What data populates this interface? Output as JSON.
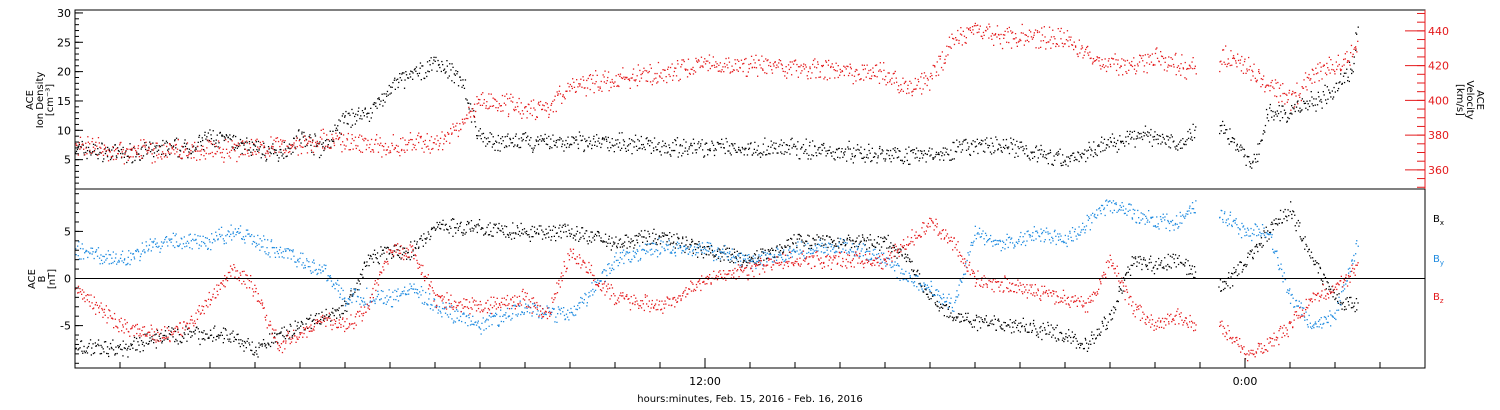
{
  "colors": {
    "black": "#000000",
    "red": "#e41a1c",
    "blue": "#1f8be0"
  },
  "chart_data": [
    {
      "type": "scatter",
      "panel": "ion-density-velocity",
      "ylabel_lines": [
        "ACE",
        "Ion Density",
        "[cm⁻³]"
      ],
      "ylabel_right_lines": [
        "ACE",
        "Velocity",
        "[km/s]"
      ],
      "ylim": [
        0,
        30.5
      ],
      "ylim_right": [
        349,
        452
      ],
      "yticks_left": [
        5,
        10,
        15,
        20,
        25,
        30
      ],
      "yticks_right": [
        360,
        380,
        400,
        420,
        440
      ],
      "x_hours_range": [
        -2.0,
        28.0
      ],
      "series": [
        {
          "axis": "left",
          "color": "black",
          "points": [
            [
              -2.0,
              7
            ],
            [
              -1.0,
              6
            ],
            [
              0.0,
              7
            ],
            [
              0.6,
              7
            ],
            [
              1.0,
              9
            ],
            [
              1.5,
              8
            ],
            [
              2.0,
              7
            ],
            [
              2.5,
              6
            ],
            [
              3.0,
              9
            ],
            [
              3.5,
              7
            ],
            [
              4.0,
              12
            ],
            [
              4.5,
              13
            ],
            [
              5.0,
              17
            ],
            [
              5.3,
              19
            ],
            [
              5.7,
              20
            ],
            [
              6.0,
              22
            ],
            [
              6.3,
              20
            ],
            [
              6.6,
              19
            ],
            [
              6.9,
              10
            ],
            [
              7.2,
              8
            ],
            [
              8.0,
              8
            ],
            [
              9.0,
              8
            ],
            [
              10.0,
              8
            ],
            [
              11.0,
              7.5
            ],
            [
              12.0,
              7
            ],
            [
              13.0,
              7
            ],
            [
              14.0,
              7
            ],
            [
              15.0,
              6.5
            ],
            [
              16.0,
              6
            ],
            [
              17.0,
              6
            ],
            [
              18.0,
              7.5
            ],
            [
              19.0,
              7
            ],
            [
              20.0,
              5
            ],
            [
              21.0,
              8
            ],
            [
              21.5,
              9
            ],
            [
              22.0,
              9
            ],
            [
              22.5,
              8
            ],
            [
              23.3,
              12
            ],
            [
              24.2,
              4
            ],
            [
              24.5,
              13
            ],
            [
              25.0,
              13
            ],
            [
              25.5,
              15
            ],
            [
              26.0,
              17
            ],
            [
              26.4,
              21
            ],
            [
              26.5,
              29
            ]
          ]
        },
        {
          "axis": "right",
          "color": "red",
          "points": [
            [
              -2.0,
              375
            ],
            [
              -1.0,
              371
            ],
            [
              0.0,
              372
            ],
            [
              0.6,
              371
            ],
            [
              1.0,
              372
            ],
            [
              1.5,
              371
            ],
            [
              2.0,
              372
            ],
            [
              2.5,
              374
            ],
            [
              3.0,
              375
            ],
            [
              3.5,
              378
            ],
            [
              4.0,
              376
            ],
            [
              4.5,
              375
            ],
            [
              5.0,
              374
            ],
            [
              5.5,
              376
            ],
            [
              6.0,
              375
            ],
            [
              6.5,
              385
            ],
            [
              7.0,
              400
            ],
            [
              7.5,
              399
            ],
            [
              8.0,
              396
            ],
            [
              8.5,
              396
            ],
            [
              9.0,
              408
            ],
            [
              10.0,
              413
            ],
            [
              11.0,
              415
            ],
            [
              12.0,
              421
            ],
            [
              13.0,
              421
            ],
            [
              14.0,
              419
            ],
            [
              15.0,
              416
            ],
            [
              16.0,
              416
            ],
            [
              16.5,
              407
            ],
            [
              17.0,
              412
            ],
            [
              17.5,
              435
            ],
            [
              18.0,
              442
            ],
            [
              18.5,
              437
            ],
            [
              19.0,
              437
            ],
            [
              20.0,
              437
            ],
            [
              20.5,
              425
            ],
            [
              21.0,
              421
            ],
            [
              21.5,
              420
            ],
            [
              22.0,
              424
            ],
            [
              23.0,
              417
            ],
            [
              23.5,
              425
            ],
            [
              24.0,
              420
            ],
            [
              24.5,
              410
            ],
            [
              25.0,
              400
            ],
            [
              25.5,
              415
            ],
            [
              26.0,
              420
            ],
            [
              26.5,
              430
            ]
          ]
        }
      ]
    },
    {
      "type": "scatter",
      "panel": "magnetic-field",
      "ylabel_lines": [
        "ACE",
        "B",
        "[nT]"
      ],
      "ylim": [
        -9.5,
        9.5
      ],
      "yticks": [
        -5,
        0,
        5
      ],
      "x_hours_range": [
        -2.0,
        28.0
      ],
      "xticks_hours": [
        -1,
        0,
        1,
        2,
        3,
        4,
        5,
        6,
        7,
        8,
        9,
        10,
        11,
        12,
        13,
        14,
        15,
        16,
        17,
        18,
        19,
        20,
        21,
        22,
        23,
        24,
        25,
        26,
        27,
        28,
        29
      ],
      "xtick_labels": [
        {
          "hour": 12,
          "label": "12:00"
        },
        {
          "hour": 24,
          "label": "0:00"
        }
      ],
      "xlabel": "hours:minutes, Feb. 15, 2016 - Feb. 16, 2016",
      "legend": [
        {
          "text": "B",
          "sub": "x",
          "color": "black"
        },
        {
          "text": "B",
          "sub": "y",
          "color": "blue"
        },
        {
          "text": "B",
          "sub": "z",
          "color": "red"
        }
      ],
      "series": [
        {
          "name": "Bx",
          "color": "black",
          "points": [
            [
              -2.0,
              -7
            ],
            [
              -1.0,
              -7.5
            ],
            [
              0.0,
              -6
            ],
            [
              1.0,
              -6
            ],
            [
              1.5,
              -6
            ],
            [
              2.0,
              -7.5
            ],
            [
              2.5,
              -6
            ],
            [
              3.0,
              -5
            ],
            [
              3.5,
              -4
            ],
            [
              4.0,
              -3
            ],
            [
              4.5,
              2
            ],
            [
              5.0,
              3
            ],
            [
              5.5,
              3
            ],
            [
              6.0,
              5.5
            ],
            [
              7.0,
              5.5
            ],
            [
              8.0,
              5
            ],
            [
              9.0,
              5
            ],
            [
              10.0,
              4
            ],
            [
              11.0,
              4.5
            ],
            [
              12.0,
              3
            ],
            [
              13.0,
              2
            ],
            [
              14.0,
              4
            ],
            [
              15.0,
              4
            ],
            [
              16.0,
              4
            ],
            [
              16.5,
              2
            ],
            [
              17.0,
              -2
            ],
            [
              17.5,
              -4
            ],
            [
              18.0,
              -4.5
            ],
            [
              19.0,
              -5
            ],
            [
              20.0,
              -6
            ],
            [
              20.5,
              -7
            ],
            [
              21.0,
              -4
            ],
            [
              21.5,
              2
            ],
            [
              22.0,
              1.5
            ],
            [
              22.5,
              2
            ],
            [
              23.0,
              0
            ],
            [
              23.5,
              -1
            ],
            [
              24.0,
              2
            ],
            [
              24.5,
              5
            ],
            [
              25.0,
              7.5
            ],
            [
              25.5,
              2
            ],
            [
              26.0,
              -2
            ],
            [
              26.5,
              -3
            ]
          ]
        },
        {
          "name": "By",
          "color": "blue",
          "points": [
            [
              -2.0,
              3
            ],
            [
              -1.0,
              2
            ],
            [
              0.0,
              4
            ],
            [
              1.0,
              4
            ],
            [
              1.5,
              5
            ],
            [
              2.0,
              4
            ],
            [
              2.5,
              3
            ],
            [
              3.0,
              2
            ],
            [
              3.5,
              1
            ],
            [
              4.0,
              -2
            ],
            [
              5.0,
              -2
            ],
            [
              5.5,
              -1
            ],
            [
              6.0,
              -3
            ],
            [
              6.5,
              -4
            ],
            [
              7.0,
              -5
            ],
            [
              8.0,
              -3
            ],
            [
              9.0,
              -4
            ],
            [
              10.0,
              2
            ],
            [
              11.0,
              3.5
            ],
            [
              12.0,
              3
            ],
            [
              13.0,
              2
            ],
            [
              14.0,
              3
            ],
            [
              15.0,
              3.5
            ],
            [
              16.0,
              2
            ],
            [
              16.5,
              0
            ],
            [
              17.0,
              -1
            ],
            [
              17.5,
              -3
            ],
            [
              18.0,
              5
            ],
            [
              18.5,
              4
            ],
            [
              19.0,
              4
            ],
            [
              19.5,
              5
            ],
            [
              20.0,
              4
            ],
            [
              21.0,
              8
            ],
            [
              21.5,
              7
            ],
            [
              22.0,
              6
            ],
            [
              22.5,
              6
            ],
            [
              23.0,
              8
            ],
            [
              23.5,
              7
            ],
            [
              24.0,
              5
            ],
            [
              24.5,
              5
            ],
            [
              25.0,
              -2
            ],
            [
              25.5,
              -5
            ],
            [
              26.0,
              -4
            ],
            [
              26.5,
              4
            ]
          ]
        },
        {
          "name": "Bz",
          "color": "red",
          "points": [
            [
              -2.0,
              -1
            ],
            [
              -1.0,
              -5
            ],
            [
              0.0,
              -6
            ],
            [
              0.5,
              -5
            ],
            [
              1.0,
              -2
            ],
            [
              1.5,
              1
            ],
            [
              2.0,
              -1
            ],
            [
              2.5,
              -7
            ],
            [
              3.0,
              -6
            ],
            [
              3.5,
              -4
            ],
            [
              4.0,
              -5
            ],
            [
              4.5,
              -3
            ],
            [
              5.0,
              3
            ],
            [
              5.5,
              3
            ],
            [
              6.0,
              -2
            ],
            [
              7.0,
              -3
            ],
            [
              8.0,
              -2
            ],
            [
              8.5,
              -4
            ],
            [
              9.0,
              3
            ],
            [
              10.0,
              -2
            ],
            [
              11.0,
              -3
            ],
            [
              12.0,
              0
            ],
            [
              13.0,
              1
            ],
            [
              14.0,
              2
            ],
            [
              15.0,
              2
            ],
            [
              16.0,
              2
            ],
            [
              16.5,
              4
            ],
            [
              17.0,
              6
            ],
            [
              17.5,
              4
            ],
            [
              18.0,
              0
            ],
            [
              19.0,
              -1
            ],
            [
              20.0,
              -2
            ],
            [
              20.5,
              -3
            ],
            [
              21.0,
              2
            ],
            [
              21.5,
              -3
            ],
            [
              22.0,
              -5
            ],
            [
              22.5,
              -4
            ],
            [
              23.0,
              -5
            ],
            [
              23.5,
              -5
            ],
            [
              24.0,
              -8
            ],
            [
              24.5,
              -7
            ],
            [
              25.0,
              -5
            ],
            [
              25.5,
              -2
            ],
            [
              26.0,
              -1
            ],
            [
              26.5,
              1
            ]
          ]
        }
      ]
    }
  ]
}
